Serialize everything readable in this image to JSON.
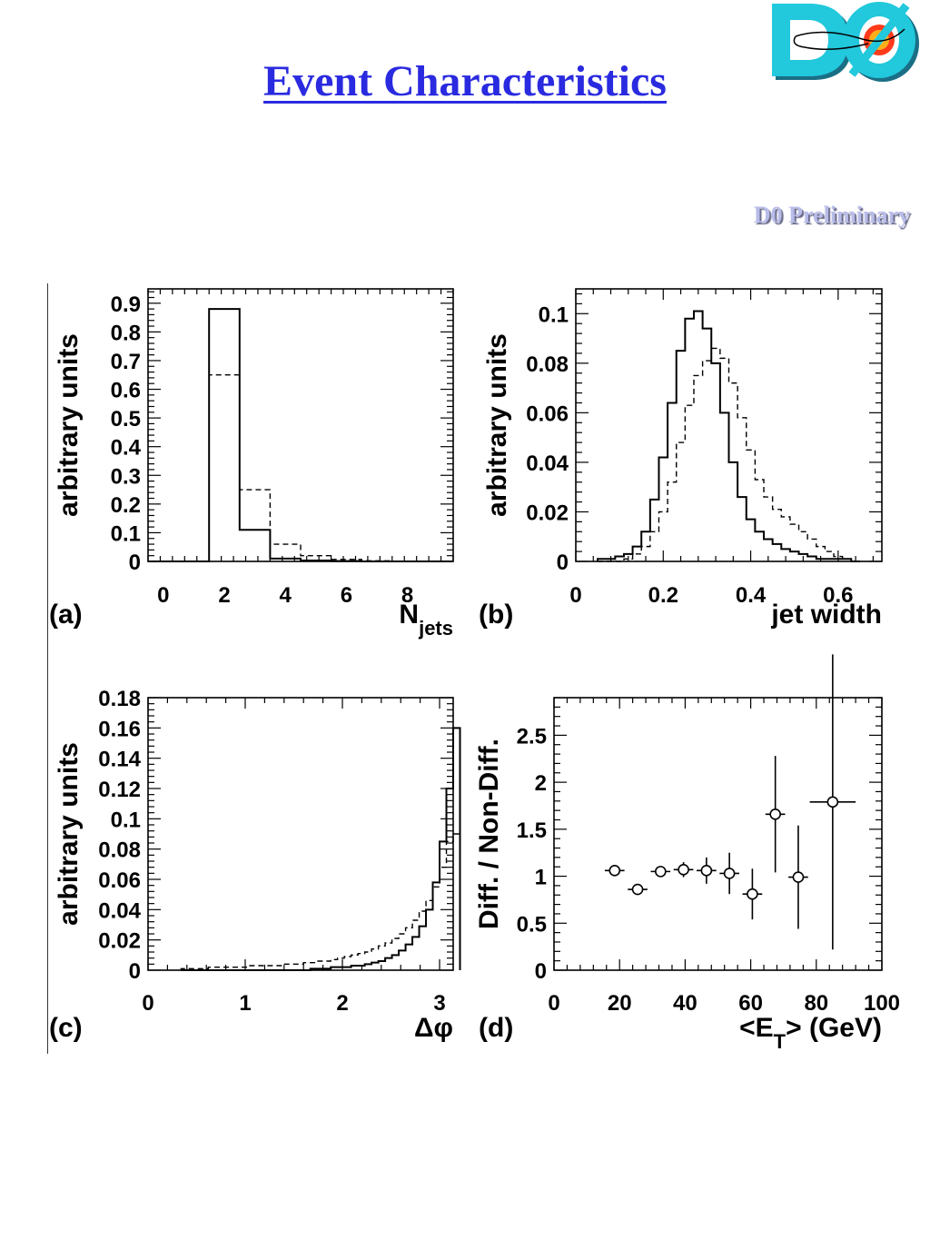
{
  "page": {
    "title": "Event Characteristics",
    "watermark": "D0 Preliminary"
  },
  "colors": {
    "title": "#2a2ae0",
    "watermark": "#b8bce8",
    "logo_cyan": "#22c8dc",
    "axis": "#000000"
  },
  "logo": {
    "text": "DØ",
    "icon": "d0-detector-logo"
  },
  "chart_data": [
    {
      "panel": "(a)",
      "type": "histogram",
      "xlabel": "N",
      "xlabel_sub": "jets",
      "ylabel": "arbitrary units",
      "xlim": [
        -0.5,
        9.5
      ],
      "ylim": [
        0,
        0.95
      ],
      "xticks": [
        0,
        2,
        4,
        6,
        8
      ],
      "yticks": [
        0,
        0.1,
        0.2,
        0.3,
        0.4,
        0.5,
        0.6,
        0.7,
        0.8,
        0.9
      ],
      "grid": false,
      "series": [
        {
          "style": "solid",
          "bin_edges": [
            -0.5,
            0.5,
            1.5,
            2.5,
            3.5,
            4.5,
            5.5,
            6.5,
            7.5,
            8.5,
            9.5
          ],
          "values": [
            0,
            0,
            0.88,
            0.11,
            0.01,
            0.003,
            0.001,
            0,
            0,
            0
          ]
        },
        {
          "style": "dashed",
          "bin_edges": [
            -0.5,
            0.5,
            1.5,
            2.5,
            3.5,
            4.5,
            5.5,
            6.5,
            7.5,
            8.5,
            9.5
          ],
          "values": [
            0,
            0,
            0.65,
            0.25,
            0.06,
            0.02,
            0.007,
            0.002,
            0.001,
            0
          ]
        }
      ]
    },
    {
      "panel": "(b)",
      "type": "histogram",
      "xlabel": "jet width",
      "ylabel": "arbitrary units",
      "xlim": [
        0,
        0.7
      ],
      "ylim": [
        0,
        0.11
      ],
      "xticks": [
        0,
        0.2,
        0.4,
        0.6
      ],
      "yticks": [
        0,
        0.02,
        0.04,
        0.06,
        0.08,
        0.1
      ],
      "grid": false,
      "series": [
        {
          "style": "solid",
          "bin_start": 0.05,
          "bin_width": 0.02,
          "values": [
            0.001,
            0.001,
            0.002,
            0.003,
            0.006,
            0.012,
            0.025,
            0.042,
            0.064,
            0.085,
            0.098,
            0.101,
            0.094,
            0.08,
            0.06,
            0.04,
            0.026,
            0.017,
            0.012,
            0.009,
            0.007,
            0.005,
            0.004,
            0.003,
            0.002,
            0.001,
            0.001,
            0.001,
            0.001,
            0
          ]
        },
        {
          "style": "dashed",
          "bin_start": 0.05,
          "bin_width": 0.02,
          "values": [
            0,
            0,
            0,
            0.001,
            0.003,
            0.006,
            0.012,
            0.02,
            0.032,
            0.048,
            0.063,
            0.075,
            0.081,
            0.086,
            0.082,
            0.072,
            0.058,
            0.045,
            0.033,
            0.026,
            0.021,
            0.018,
            0.015,
            0.012,
            0.009,
            0.006,
            0.004,
            0.002,
            0.001,
            0
          ]
        }
      ]
    },
    {
      "panel": "(c)",
      "type": "histogram",
      "xlabel": "Δφ",
      "ylabel": "arbitrary units",
      "xlim": [
        0,
        3.14
      ],
      "ylim": [
        0,
        0.18
      ],
      "xticks": [
        0,
        1,
        2,
        3
      ],
      "yticks": [
        0,
        0.02,
        0.04,
        0.06,
        0.08,
        0.1,
        0.12,
        0.14,
        0.16,
        0.18
      ],
      "grid": false,
      "series": [
        {
          "style": "solid",
          "bin_start": 0.34,
          "bin_width": 0.07,
          "values": [
            0,
            0,
            0,
            0,
            0,
            0,
            0,
            0,
            0,
            0,
            0,
            0,
            0,
            0,
            0,
            0,
            0,
            0,
            0,
            0.001,
            0.001,
            0.001,
            0.002,
            0.002,
            0.002,
            0.003,
            0.003,
            0.004,
            0.005,
            0.006,
            0.008,
            0.01,
            0.013,
            0.017,
            0.022,
            0.029,
            0.04,
            0.058,
            0.085,
            0.12,
            0.16
          ]
        },
        {
          "style": "dashed",
          "bin_start": 0.34,
          "bin_width": 0.07,
          "values": [
            0.001,
            0.001,
            0.001,
            0.001,
            0.002,
            0.002,
            0.002,
            0.002,
            0.002,
            0.002,
            0.003,
            0.003,
            0.003,
            0.003,
            0.003,
            0.004,
            0.004,
            0.004,
            0.005,
            0.005,
            0.006,
            0.006,
            0.007,
            0.008,
            0.009,
            0.01,
            0.011,
            0.012,
            0.014,
            0.016,
            0.018,
            0.021,
            0.024,
            0.028,
            0.033,
            0.039,
            0.046,
            0.055,
            0.068,
            0.085,
            0.09
          ]
        }
      ]
    },
    {
      "panel": "(d)",
      "type": "scatter",
      "xlabel": "<E",
      "xlabel_sub": "T",
      "xlabel_tail": "> (GeV)",
      "ylabel": "Diff. / Non-Diff.",
      "xlim": [
        0,
        100
      ],
      "ylim": [
        0,
        2.9
      ],
      "xticks": [
        0,
        20,
        40,
        60,
        80,
        100
      ],
      "yticks": [
        0,
        0.5,
        1,
        1.5,
        2,
        2.5
      ],
      "grid": false,
      "points": [
        {
          "x": 18.5,
          "y": 1.06,
          "xerr": 3,
          "yerr": 0.02
        },
        {
          "x": 25.5,
          "y": 0.86,
          "xerr": 3,
          "yerr": 0.02
        },
        {
          "x": 32.5,
          "y": 1.05,
          "xerr": 3,
          "yerr": 0.04
        },
        {
          "x": 39.5,
          "y": 1.07,
          "xerr": 3,
          "yerr": 0.08
        },
        {
          "x": 46.5,
          "y": 1.06,
          "xerr": 3,
          "yerr": 0.14
        },
        {
          "x": 53.5,
          "y": 1.03,
          "xerr": 3,
          "yerr": 0.22
        },
        {
          "x": 60.5,
          "y": 0.81,
          "xerr": 3,
          "yerr": 0.27
        },
        {
          "x": 67.5,
          "y": 1.66,
          "xerr": 3,
          "yerr": 0.62
        },
        {
          "x": 74.5,
          "y": 0.99,
          "xerr": 3,
          "yerr": 0.55
        },
        {
          "x": 85,
          "y": 1.79,
          "xerr": 7,
          "yerr": 1.57
        }
      ]
    }
  ]
}
